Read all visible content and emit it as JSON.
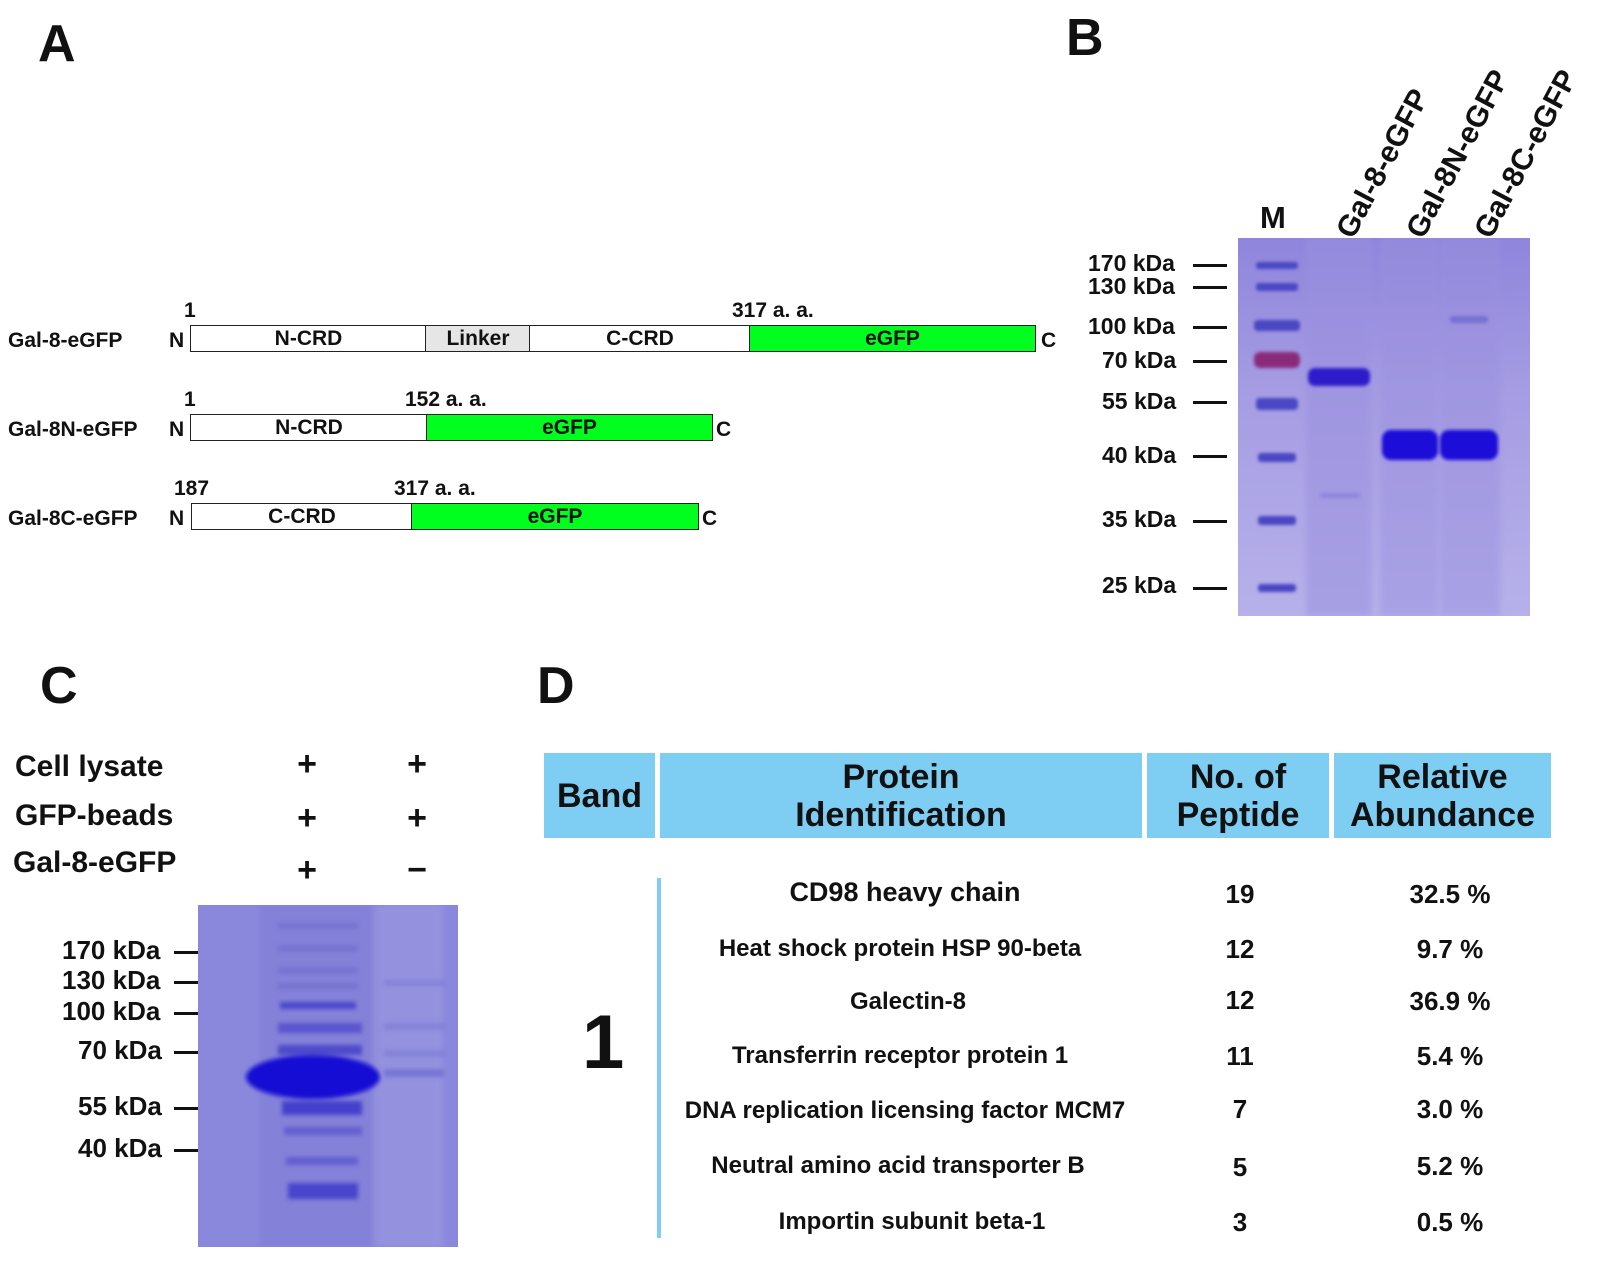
{
  "panels": {
    "a": {
      "letter": "A"
    },
    "b": {
      "letter": "B"
    },
    "c": {
      "letter": "C"
    },
    "d": {
      "letter": "D"
    }
  },
  "constructs": [
    {
      "name": "Gal-8-eGFP",
      "n_label": "N",
      "c_label": "C",
      "start_label": "1",
      "end_label": "317 a. a.",
      "segments": [
        {
          "label": "N-CRD",
          "color": "#ffffff"
        },
        {
          "label": "Linker",
          "color": "#e6e6e6"
        },
        {
          "label": "C-CRD",
          "color": "#ffffff"
        },
        {
          "label": "eGFP",
          "color": "#00ff1e"
        }
      ]
    },
    {
      "name": "Gal-8N-eGFP",
      "n_label": "N",
      "c_label": "C",
      "start_label": "1",
      "end_label": "152 a. a.",
      "segments": [
        {
          "label": "N-CRD",
          "color": "#ffffff"
        },
        {
          "label": "eGFP",
          "color": "#00ff1e"
        }
      ]
    },
    {
      "name": "Gal-8C-eGFP",
      "n_label": "N",
      "c_label": "C",
      "start_label": "187",
      "end_label": "317 a. a.",
      "segments": [
        {
          "label": "C-CRD",
          "color": "#ffffff"
        },
        {
          "label": "eGFP",
          "color": "#00ff1e"
        }
      ]
    }
  ],
  "gel_b": {
    "lane_labels": [
      "M",
      "Gal-8-eGFP",
      "Gal-8N-eGFP",
      "Gal-8C-eGFP"
    ],
    "markers": [
      "170 kDa",
      "130 kDa",
      "100 kDa",
      "70 kDa",
      "55 kDa",
      "40 kDa",
      "35 kDa",
      "25 kDa"
    ]
  },
  "gel_c": {
    "conditions": [
      {
        "label": "Cell lysate",
        "lane1": "+",
        "lane2": "+"
      },
      {
        "label": "GFP-beads",
        "lane1": "+",
        "lane2": "+"
      },
      {
        "label": "Gal-8-eGFP",
        "lane1": "+",
        "lane2": "−"
      }
    ],
    "markers": [
      "170 kDa",
      "130 kDa",
      "100 kDa",
      "70 kDa",
      "55 kDa",
      "40 kDa"
    ],
    "band_marker": "1"
  },
  "table": {
    "headers": {
      "band": "Band",
      "protein_line1": "Protein",
      "protein_line2": "Identification",
      "peptide_line1": "No. of",
      "peptide_line2": "Peptide",
      "abundance_line1": "Relative",
      "abundance_line2": "Abundance"
    },
    "band": "1",
    "rows": [
      {
        "protein": "CD98 heavy chain",
        "peptides": "19",
        "abundance": "32.5 %"
      },
      {
        "protein": "Heat shock protein HSP 90-beta",
        "peptides": "12",
        "abundance": "9.7 %"
      },
      {
        "protein": "Galectin-8",
        "peptides": "12",
        "abundance": "36.9 %"
      },
      {
        "protein": "Transferrin receptor protein 1",
        "peptides": "11",
        "abundance": "5.4 %"
      },
      {
        "protein": "DNA replication licensing factor MCM7",
        "peptides": "7",
        "abundance": "3.0 %"
      },
      {
        "protein": "Neutral amino acid transporter B",
        "peptides": "5",
        "abundance": "5.2 %"
      },
      {
        "protein": "Importin subunit beta-1",
        "peptides": "3",
        "abundance": "0.5 %"
      }
    ]
  }
}
